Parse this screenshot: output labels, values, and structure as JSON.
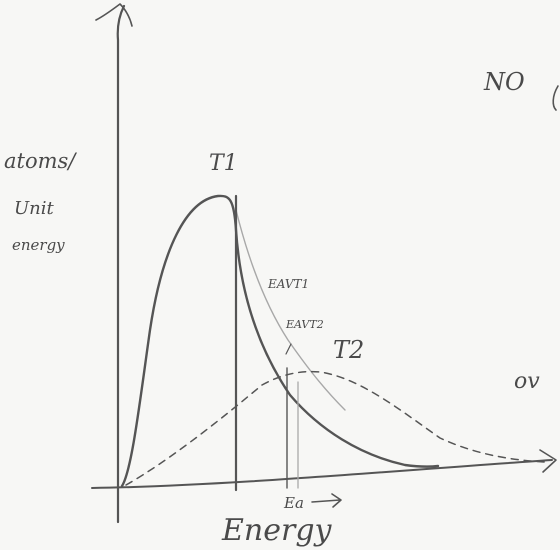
{
  "ylabel_lines": [
    "atoms/",
    "Unit",
    "energy"
  ],
  "xlabel": "Energy",
  "curve_t1_label": "T1",
  "curve_t2_label": "T2",
  "eav_t1_label": "EAVT1",
  "eav_t2_label": "EAVT2",
  "ea_label": "Ea",
  "margin_note_top": "NO",
  "margin_note_right": "ov"
}
